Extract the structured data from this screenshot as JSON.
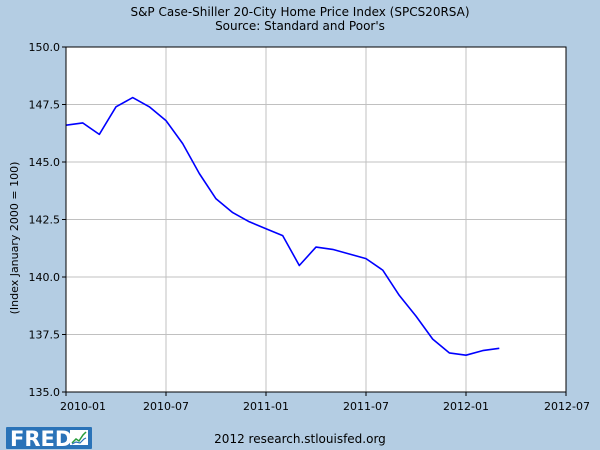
{
  "chart_data": {
    "type": "line",
    "title": "S&P Case-Shiller 20-City Home Price Index (SPCS20RSA)",
    "subtitle": "Source: Standard and Poor's",
    "xlabel": "",
    "ylabel": "(Index January 2000 = 100)",
    "ylim": [
      135.0,
      150.0
    ],
    "xlim": [
      "2010-01",
      "2012-07"
    ],
    "x_ticks": [
      "2010-01",
      "2010-07",
      "2011-01",
      "2011-07",
      "2012-01",
      "2012-07"
    ],
    "y_ticks": [
      "135.0",
      "137.5",
      "140.0",
      "142.5",
      "145.0",
      "147.5",
      "150.0"
    ],
    "grid": true,
    "series": [
      {
        "color": "#0000ff",
        "x": [
          "2010-01",
          "2010-02",
          "2010-03",
          "2010-04",
          "2010-05",
          "2010-06",
          "2010-07",
          "2010-08",
          "2010-09",
          "2010-10",
          "2010-11",
          "2010-12",
          "2011-01",
          "2011-02",
          "2011-03",
          "2011-04",
          "2011-05",
          "2011-06",
          "2011-07",
          "2011-08",
          "2011-09",
          "2011-10",
          "2011-11",
          "2011-12",
          "2012-01",
          "2012-02",
          "2012-03"
        ],
        "values": [
          146.6,
          146.7,
          146.2,
          147.4,
          147.8,
          147.4,
          146.8,
          145.8,
          144.5,
          143.4,
          142.8,
          142.4,
          142.1,
          141.8,
          140.5,
          141.3,
          141.2,
          141.0,
          140.8,
          140.3,
          139.2,
          138.3,
          137.3,
          136.7,
          136.6,
          136.8,
          136.9
        ]
      }
    ]
  },
  "footer": {
    "logo_text": "FRED",
    "source_text": "2012 research.stlouisfed.org"
  },
  "colors": {
    "background": "#b4cde3",
    "plot_background": "#ffffff",
    "line": "#0000ff",
    "grid": "#c0c0c0"
  }
}
